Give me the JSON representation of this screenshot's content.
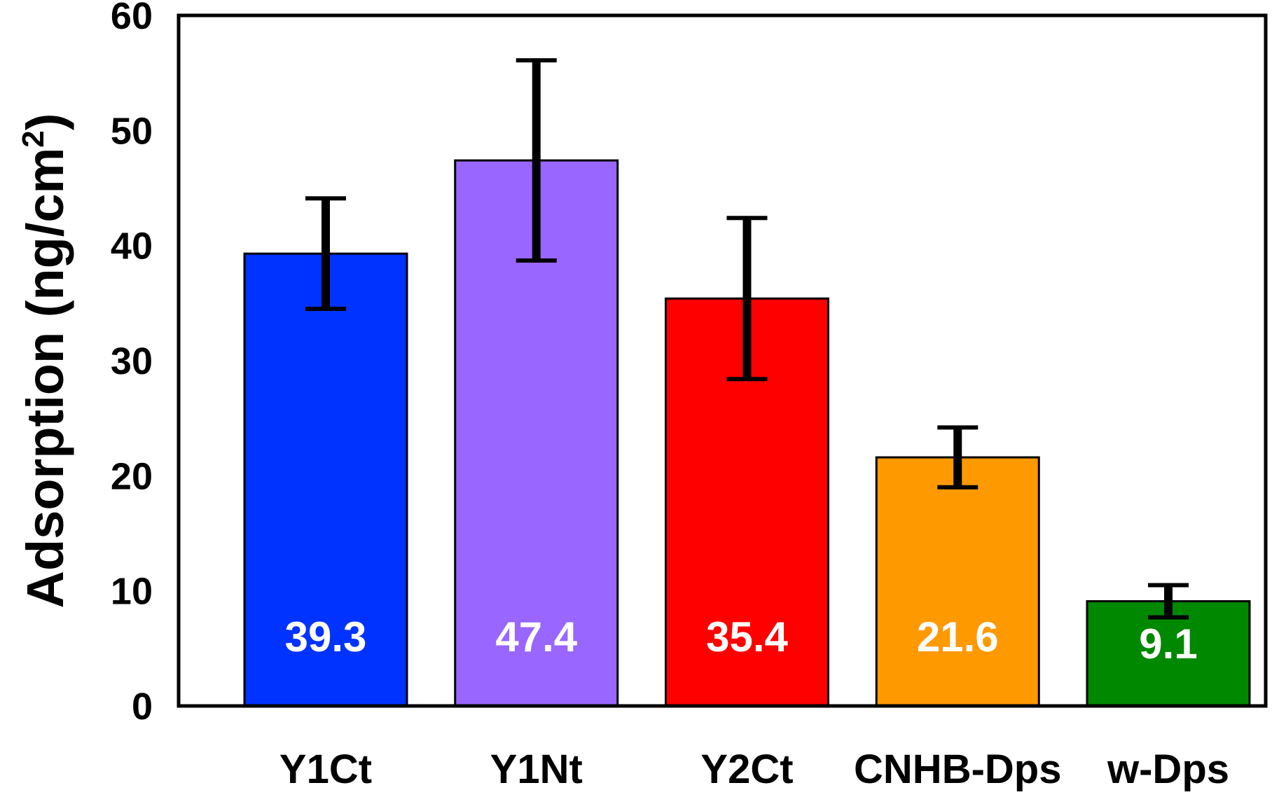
{
  "chart_data": {
    "type": "bar",
    "title": "",
    "xlabel": "",
    "ylabel": "Adsorption (ng/cm",
    "ylabel_superscript": "2",
    "ylabel_close": ")",
    "ylim": [
      0,
      60
    ],
    "yticks": [
      0,
      10,
      20,
      30,
      40,
      50,
      60
    ],
    "grid": false,
    "categories": [
      "Y1Ct",
      "Y1Nt",
      "Y2Ct",
      "CNHB-Dps",
      "w-Dps"
    ],
    "values": [
      39.3,
      47.4,
      35.4,
      21.6,
      9.1
    ],
    "value_labels": [
      "39.3",
      "47.4",
      "35.4",
      "21.6",
      "9.1"
    ],
    "errors": [
      4.8,
      8.7,
      7.0,
      2.6,
      1.4
    ],
    "colors": [
      "#0033ff",
      "#9966ff",
      "#ff0000",
      "#ff9900",
      "#008800"
    ]
  }
}
